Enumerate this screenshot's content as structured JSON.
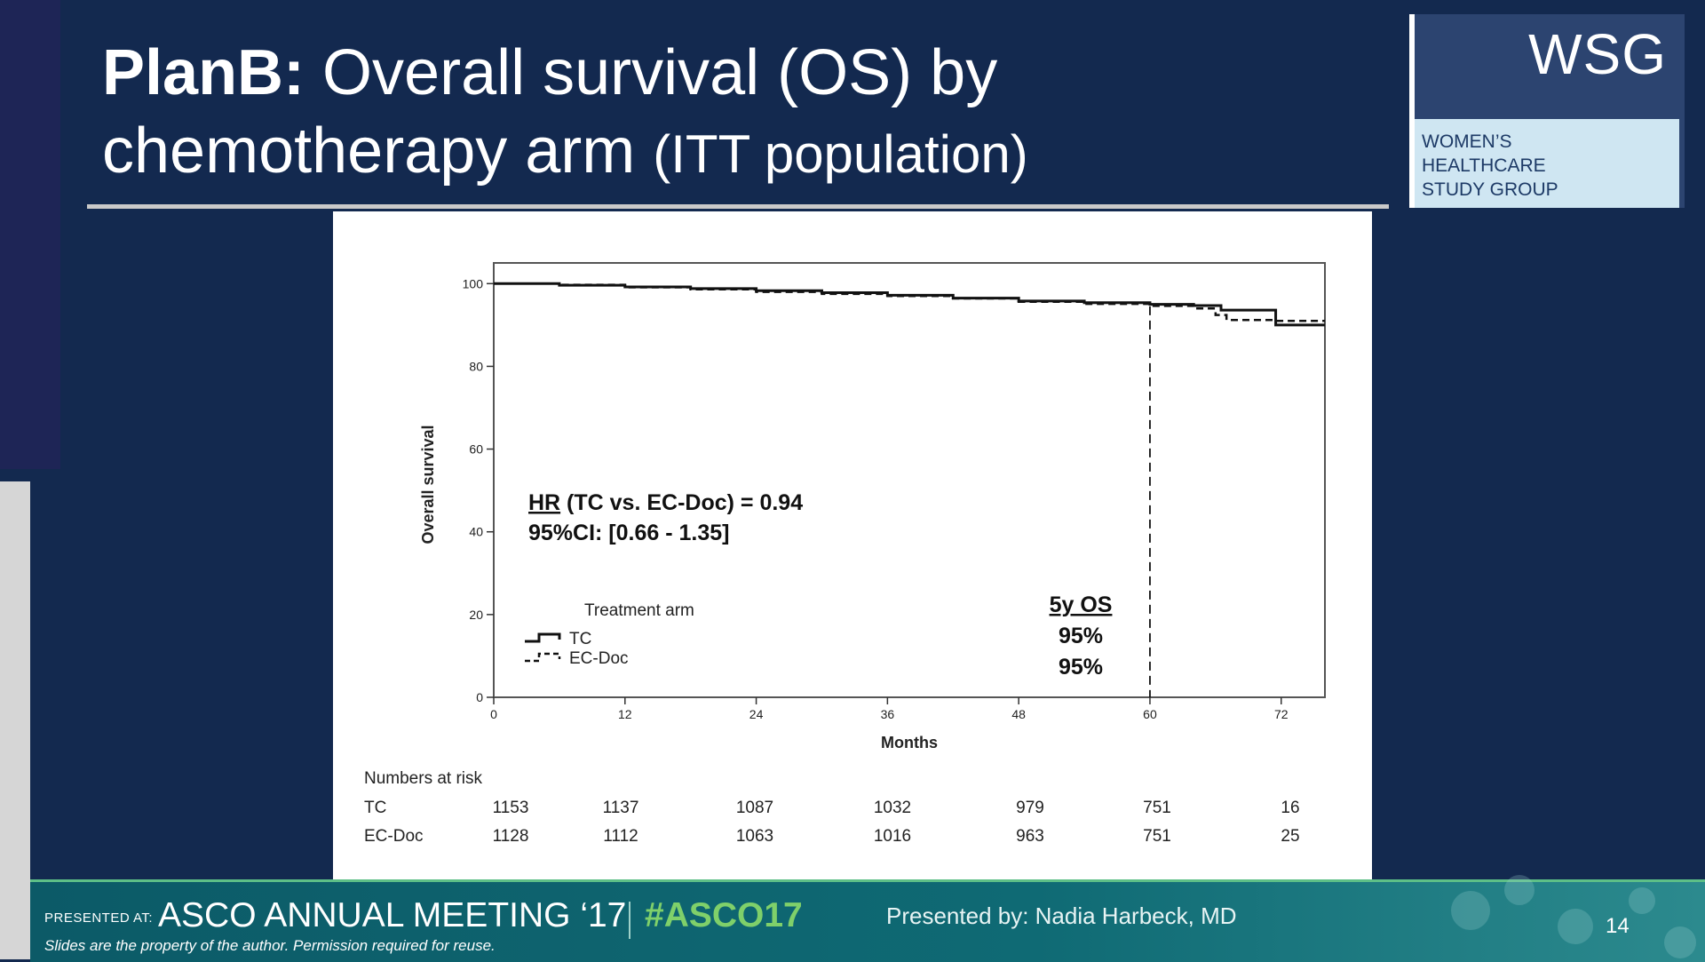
{
  "slide": {
    "title_bold": "PlanB:",
    "title_rest": "Overall survival (OS) by",
    "title_line2_main": "chemotherapy arm",
    "title_line2_small": "(ITT population)",
    "logo_wsg": "WSG",
    "logo_line1": "WOMEN’S",
    "logo_line2": "HEALTHCARE",
    "logo_line3": "STUDY GROUP",
    "page_number": "14"
  },
  "footer": {
    "presented_at": "PRESENTED AT:",
    "meeting": "ASCO ANNUAL MEETING ‘17",
    "hashtag": "#ASCO17",
    "presenter": "Presented by: Nadia Harbeck, MD",
    "disclaimer": "Slides are the property of the author. Permission required for reuse."
  },
  "chart_data": {
    "type": "line",
    "xlabel": "Months",
    "ylabel": "Overall survival",
    "xlim": [
      0,
      76
    ],
    "ylim": [
      0,
      105
    ],
    "xticks": [
      0,
      12,
      24,
      36,
      48,
      60,
      72
    ],
    "yticks": [
      0,
      20,
      40,
      60,
      80,
      100
    ],
    "legend_title": "Treatment arm",
    "series": [
      {
        "name": "TC",
        "style": "solid",
        "points": [
          [
            0,
            100
          ],
          [
            6,
            99.6
          ],
          [
            12,
            99.2
          ],
          [
            18,
            98.8
          ],
          [
            24,
            98.3
          ],
          [
            30,
            97.8
          ],
          [
            36,
            97.2
          ],
          [
            42,
            96.5
          ],
          [
            48,
            95.8
          ],
          [
            54,
            95.4
          ],
          [
            60,
            95
          ],
          [
            64,
            94.7
          ],
          [
            66.5,
            93.6
          ],
          [
            71.5,
            93.6
          ],
          [
            71.5,
            90
          ],
          [
            76,
            90
          ]
        ]
      },
      {
        "name": "EC-Doc",
        "style": "dashed",
        "points": [
          [
            0,
            100
          ],
          [
            6,
            99.7
          ],
          [
            12,
            99.1
          ],
          [
            18,
            98.6
          ],
          [
            24,
            98
          ],
          [
            30,
            97.5
          ],
          [
            36,
            97
          ],
          [
            42,
            96.4
          ],
          [
            48,
            95.6
          ],
          [
            54,
            95.1
          ],
          [
            60,
            94.6
          ],
          [
            64,
            94
          ],
          [
            66,
            92.4
          ],
          [
            67,
            91.2
          ],
          [
            71.5,
            91.2
          ],
          [
            71.5,
            91
          ],
          [
            76,
            91
          ]
        ]
      }
    ],
    "annotations": {
      "hr_label": "HR",
      "hr_text": " (TC vs. EC-Doc) = 0.94",
      "ci_text": "95%CI: [0.66 - 1.35]",
      "os_title": "5y OS",
      "os_tc": "95%",
      "os_ecdoc": "95%",
      "marker_x": 60
    },
    "numbers_at_risk": {
      "header": "Numbers at risk",
      "x": [
        0,
        12,
        24,
        36,
        48,
        60,
        72
      ],
      "rows": [
        {
          "label": "TC",
          "values": [
            "1153",
            "1137",
            "1087",
            "1032",
            "979",
            "751",
            "16"
          ]
        },
        {
          "label": "EC-Doc",
          "values": [
            "1128",
            "1112",
            "1063",
            "1016",
            "963",
            "751",
            "25"
          ]
        }
      ]
    }
  }
}
